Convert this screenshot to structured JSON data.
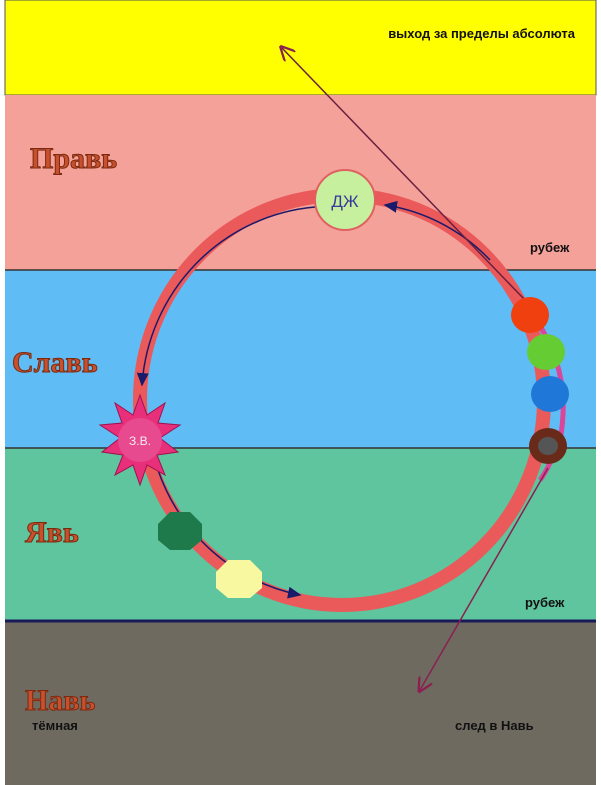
{
  "top": {
    "label": "выход за пределы абсолюта"
  },
  "realms": [
    {
      "name": "Правь",
      "border": "рубеж"
    },
    {
      "name": "Славь"
    },
    {
      "name": "Явь",
      "border": "рубеж"
    },
    {
      "name": "Навь",
      "subtitle": "тёмная",
      "note": "след в Навь"
    }
  ],
  "nodes": [
    {
      "label": "ДЖ"
    },
    {
      "label": "З.В."
    }
  ]
}
